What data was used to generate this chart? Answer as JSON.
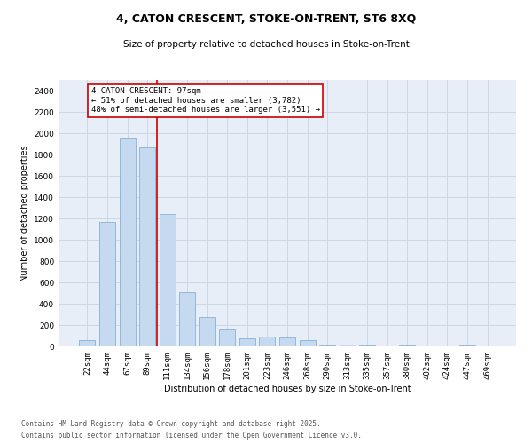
{
  "title_line1": "4, CATON CRESCENT, STOKE-ON-TRENT, ST6 8XQ",
  "title_line2": "Size of property relative to detached houses in Stoke-on-Trent",
  "xlabel": "Distribution of detached houses by size in Stoke-on-Trent",
  "ylabel": "Number of detached properties",
  "categories": [
    "22sqm",
    "44sqm",
    "67sqm",
    "89sqm",
    "111sqm",
    "134sqm",
    "156sqm",
    "178sqm",
    "201sqm",
    "223sqm",
    "246sqm",
    "268sqm",
    "290sqm",
    "313sqm",
    "335sqm",
    "357sqm",
    "380sqm",
    "402sqm",
    "424sqm",
    "447sqm",
    "469sqm"
  ],
  "values": [
    55,
    1170,
    1960,
    1870,
    1240,
    510,
    275,
    160,
    75,
    95,
    80,
    55,
    5,
    20,
    5,
    0,
    5,
    0,
    0,
    5,
    0
  ],
  "bar_color": "#c5d9f1",
  "bar_edge_color": "#7BA7CB",
  "grid_color": "#c8d4e3",
  "bg_color": "#e8eef7",
  "vline_x": 3.5,
  "vline_color": "#cc0000",
  "annotation_text": "4 CATON CRESCENT: 97sqm\n← 51% of detached houses are smaller (3,782)\n48% of semi-detached houses are larger (3,551) →",
  "annotation_box_color": "#ffffff",
  "annotation_box_edge": "#cc0000",
  "ylim": [
    0,
    2500
  ],
  "yticks": [
    0,
    200,
    400,
    600,
    800,
    1000,
    1200,
    1400,
    1600,
    1800,
    2000,
    2200,
    2400
  ],
  "footer_line1": "Contains HM Land Registry data © Crown copyright and database right 2025.",
  "footer_line2": "Contains public sector information licensed under the Open Government Licence v3.0.",
  "title_fontsize": 9,
  "subtitle_fontsize": 7.5,
  "axis_label_fontsize": 7,
  "tick_fontsize": 6.5,
  "annotation_fontsize": 6.5,
  "footer_fontsize": 5.5
}
